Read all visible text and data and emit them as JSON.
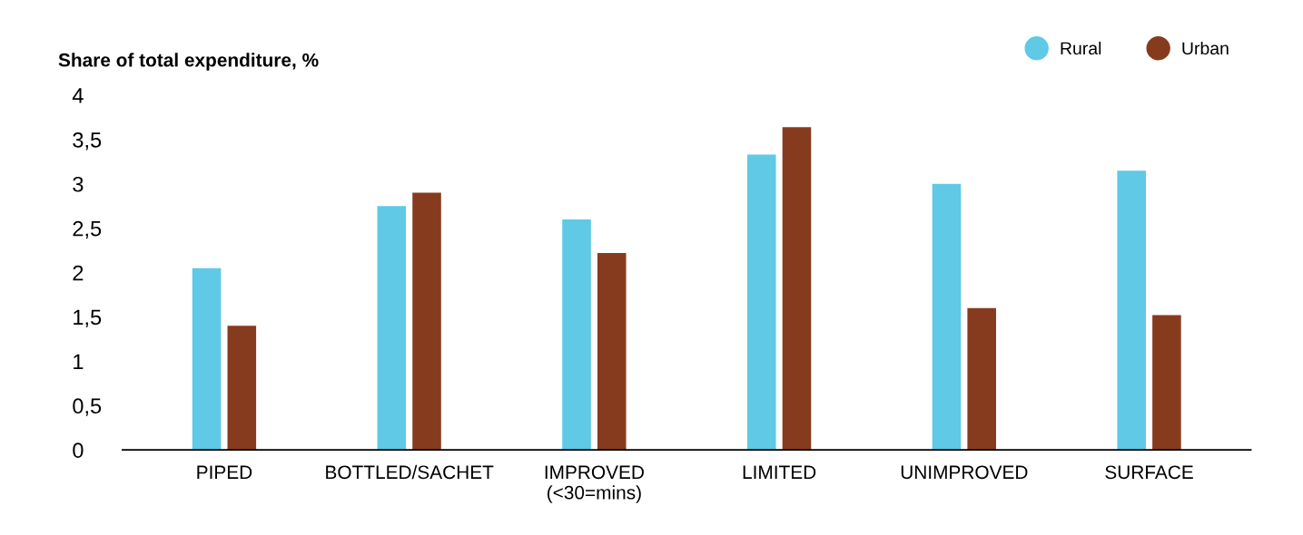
{
  "chart_data": {
    "type": "bar",
    "title": "Share of total expenditure, %",
    "categories": [
      "PIPED",
      "BOTTLED/SACHET",
      "IMPROVED\n(<30=mins)",
      "LIMITED",
      "UNIMPROVED",
      "SURFACE"
    ],
    "series": [
      {
        "name": "Rural",
        "color": "#5fc9e6",
        "values": [
          2.05,
          2.75,
          2.6,
          3.33,
          3.0,
          3.15
        ]
      },
      {
        "name": "Urban",
        "color": "#873b1e",
        "values": [
          1.4,
          2.9,
          2.22,
          3.64,
          1.6,
          1.52
        ]
      }
    ],
    "ylim": [
      0,
      4
    ],
    "yticks": [
      0,
      {
        "value": 0.5,
        "label": "0,5"
      },
      1,
      {
        "value": 1.5,
        "label": "1,5"
      },
      2,
      {
        "value": 2.5,
        "label": "2,5"
      },
      3,
      {
        "value": 3.5,
        "label": "3,5"
      },
      4
    ],
    "grid": false,
    "legend": "top right"
  }
}
